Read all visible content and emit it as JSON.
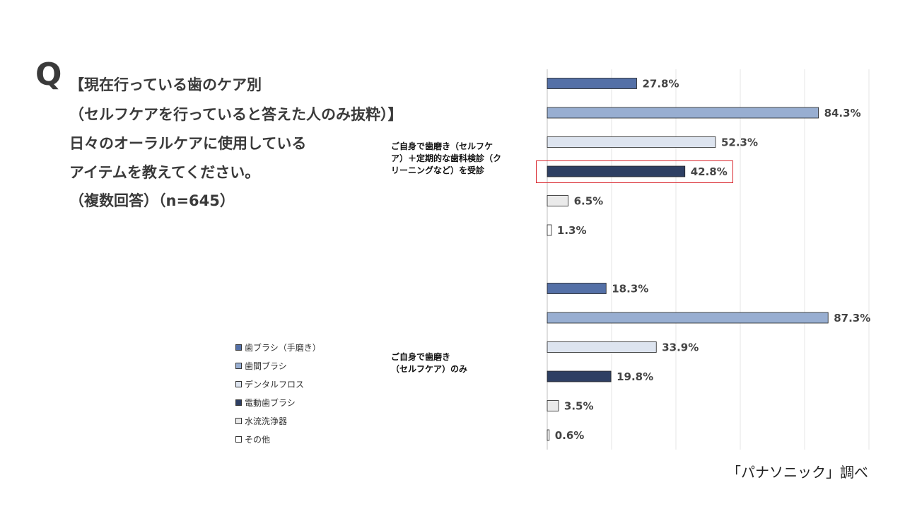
{
  "question": {
    "mark": "Q",
    "lines": [
      "【現在行っている歯のケア別",
      "（セルフケアを行っていると答えた人のみ抜粋）】",
      "日々のオーラルケアに使用している",
      "アイテムを教えてください。",
      "（複数回答）（n=645）"
    ]
  },
  "source": "「パナソニック」調べ",
  "chart_data": {
    "type": "bar",
    "orientation": "horizontal",
    "xlim": [
      0,
      100
    ],
    "grid": true,
    "legend_position": "bottom-left",
    "categories": [
      "歯ブラシ（手磨き）",
      "歯間ブラシ",
      "デンタルフロス",
      "電動歯ブラシ",
      "水流洗浄器",
      "その他"
    ],
    "colors": [
      "#5470a7",
      "#98aed1",
      "#dde4ef",
      "#2e3f63",
      "#eaeaea",
      "#ffffff"
    ],
    "groups": [
      {
        "label_lines": [
          "ご自身で歯磨き（セルフケ",
          "ア）＋定期的な歯科検診（ク",
          "リーニングなど）を受診"
        ],
        "values": [
          27.8,
          84.3,
          52.3,
          42.8,
          6.5,
          1.3
        ],
        "value_labels": [
          "27.8%",
          "84.3%",
          "52.3%",
          "42.8%",
          "6.5%",
          "1.3%"
        ],
        "highlight_index": 3
      },
      {
        "label_lines": [
          "ご自身で歯磨き",
          "（セルフケア）のみ"
        ],
        "values": [
          18.3,
          87.3,
          33.9,
          19.8,
          3.5,
          0.6
        ],
        "value_labels": [
          "18.3%",
          "87.3%",
          "33.9%",
          "19.8%",
          "3.5%",
          "0.6%"
        ],
        "highlight_index": null
      }
    ]
  }
}
